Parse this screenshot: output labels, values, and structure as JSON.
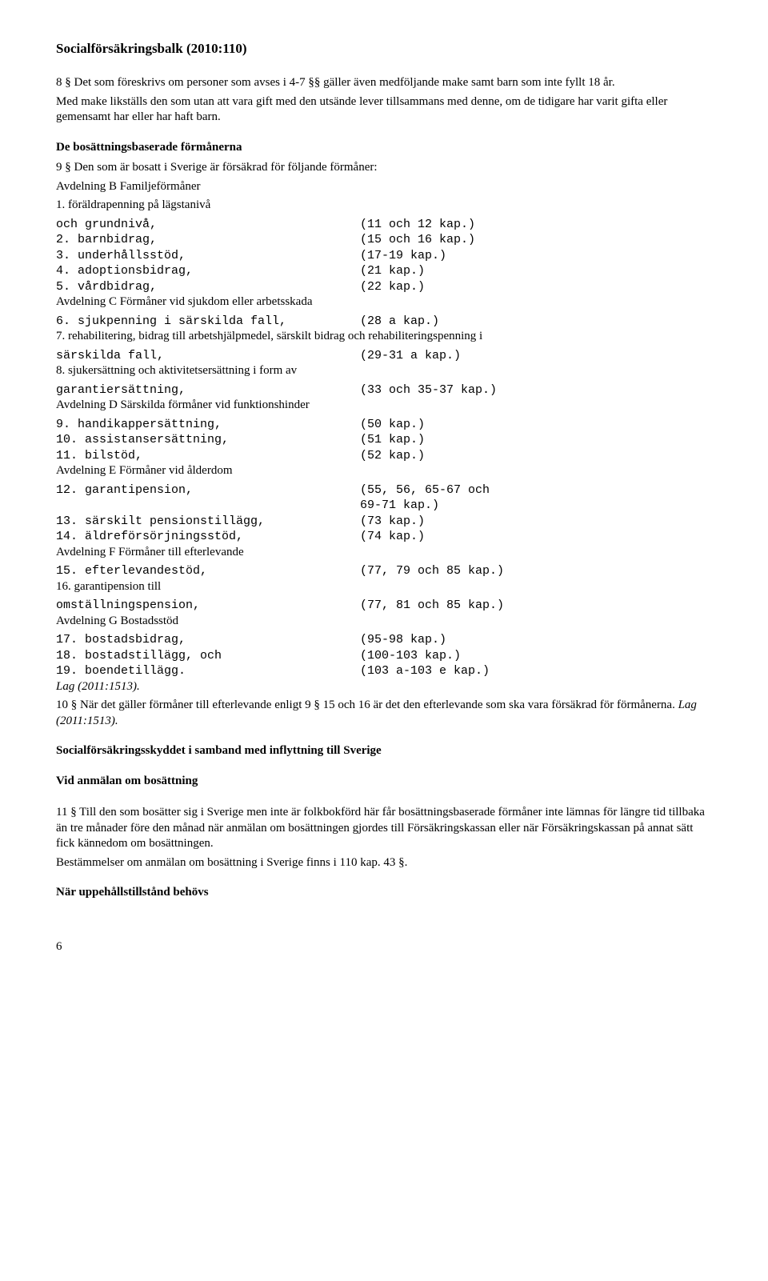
{
  "title": "Socialförsäkringsbalk (2010:110)",
  "p8a": "8 § Det som föreskrivs om personer som avses i 4-7 §§ gäller även medföljande make samt barn som inte fyllt 18 år.",
  "p8b": "Med make likställs den som utan att vara gift med den utsände lever tillsammans med denne, om de tidigare har varit gifta eller gemensamt har eller har haft barn.",
  "h_bosatt": "De bosättningsbaserade förmånerna",
  "p9a": "9 § Den som är bosatt i Sverige är försäkrad för följande förmåner:",
  "avdB": "Avdelning B Familjeförmåner",
  "l1": "1. föräldrapenning på lägstanivå",
  "rows": [
    {
      "l": "och grundnivå,",
      "r": "(11 och 12 kap.)"
    },
    {
      "l": "2. barnbidrag,",
      "r": "(15 och 16 kap.)"
    },
    {
      "l": "3. underhållsstöd,",
      "r": "(17-19 kap.)"
    },
    {
      "l": "4. adoptionsbidrag,",
      "r": "(21 kap.)"
    },
    {
      "l": "5. vårdbidrag,",
      "r": "(22 kap.)"
    }
  ],
  "avdC": "Avdelning C Förmåner vid sjukdom eller arbetsskada",
  "rowsC1": [
    {
      "l": "6. sjukpenning i särskilda fall,",
      "r": "(28 a kap.)"
    }
  ],
  "p7": "7. rehabilitering, bidrag till arbetshjälpmedel, särskilt bidrag och rehabiliteringspenning i",
  "rowsC2": [
    {
      "l": "särskilda fall,",
      "r": "(29-31 a kap.)"
    }
  ],
  "p8line": "8. sjukersättning och aktivitetsersättning i form av",
  "rowsC3": [
    {
      "l": "garantiersättning,",
      "r": "(33 och 35-37 kap.)"
    }
  ],
  "avdD": "Avdelning D Särskilda förmåner vid funktionshinder",
  "rowsD": [
    {
      "l": "9. handikappersättning,",
      "r": "(50 kap.)"
    },
    {
      "l": "10. assistansersättning,",
      "r": "(51 kap.)"
    },
    {
      "l": "11. bilstöd,",
      "r": "(52 kap.)"
    }
  ],
  "avdE": "Avdelning E Förmåner vid ålderdom",
  "rowsE1": [
    {
      "l": "12. garantipension,",
      "r": "(55, 56, 65-67 och"
    },
    {
      "l": "",
      "r": "69-71 kap.)"
    },
    {
      "l": "13. särskilt pensionstillägg,",
      "r": "(73 kap.)"
    },
    {
      "l": "14. äldreförsörjningsstöd,",
      "r": "(74 kap.)"
    }
  ],
  "avdF": "Avdelning F Förmåner till efterlevande",
  "rowsF1": [
    {
      "l": "15. efterlevandestöd,",
      "r": "(77, 79 och 85 kap.)"
    }
  ],
  "p16": "16. garantipension till",
  "rowsF2": [
    {
      "l": "omställningspension,",
      "r": "(77, 81 och 85 kap.)"
    }
  ],
  "avdG": "Avdelning G Bostadsstöd",
  "rowsG": [
    {
      "l": "17. bostadsbidrag,",
      "r": "(95-98 kap.)"
    },
    {
      "l": "18. bostadstillägg, och",
      "r": "(100-103 kap.)"
    },
    {
      "l": "19. boendetillägg.",
      "r": "(103 a-103 e kap.)"
    }
  ],
  "lag1": "Lag (2011:1513).",
  "p10a": "10 § När det gäller förmåner till efterlevande enligt 9 § 15 och 16 är det den efterlevande som ska vara försäkrad för förmånerna. ",
  "lag2": "Lag (2011:1513).",
  "h_skydd": "Socialförsäkringsskyddet i samband med inflyttning till Sverige",
  "h_anm": "Vid anmälan om bosättning",
  "p11a": "11 § Till den som bosätter sig i Sverige men inte är folkbokförd här får bosättningsbaserade förmåner inte lämnas för längre tid tillbaka än tre månader före den månad när anmälan om bosättningen gjordes till Försäkringskassan eller när Försäkringskassan på annat sätt fick kännedom om bosättningen.",
  "p11b": "Bestämmelser om anmälan om bosättning i Sverige finns i 110 kap. 43 §.",
  "h_uppe": "När uppehållstillstånd behövs",
  "pagenum": "6"
}
